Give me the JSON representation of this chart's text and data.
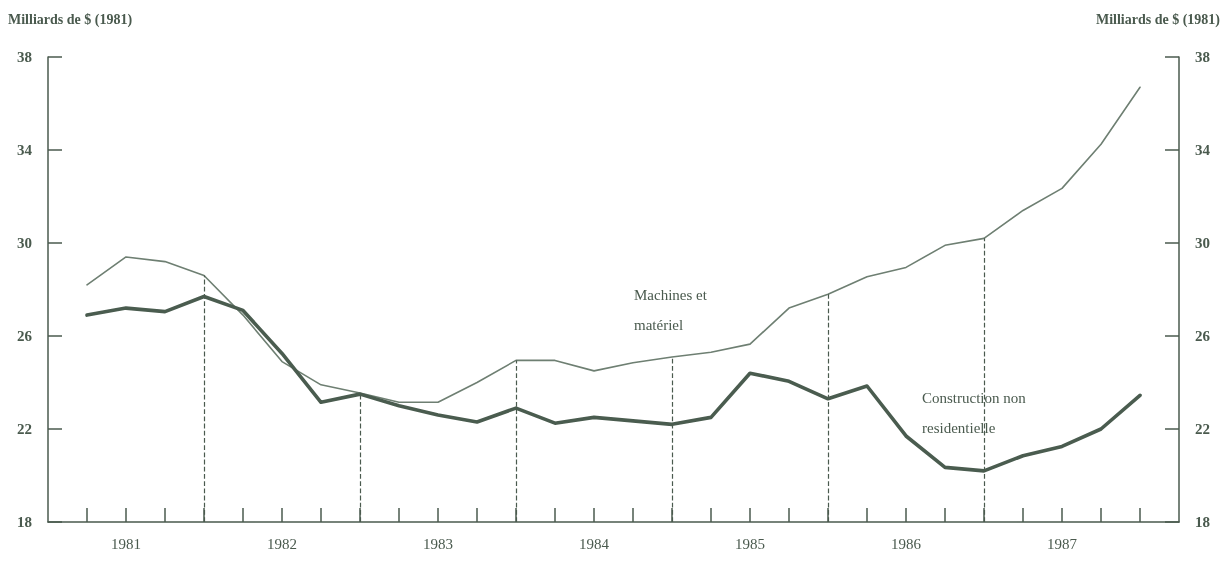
{
  "chart_data": {
    "type": "line",
    "ylabel": "Milliards de $ (1981)",
    "y2label": "Milliards de $ (1981)",
    "x": [
      1981,
      1981.25,
      1981.5,
      1981.75,
      1982,
      1982.25,
      1982.5,
      1982.75,
      1983,
      1983.25,
      1983.5,
      1983.75,
      1984,
      1984.25,
      1984.5,
      1984.75,
      1985,
      1985.25,
      1985.5,
      1985.75,
      1986,
      1986.25,
      1986.5,
      1986.75,
      1987,
      1987.25,
      1987.5,
      1987.75
    ],
    "series": [
      {
        "name": "Machines et matériel",
        "color": "#6e7f72",
        "values": [
          28.2,
          29.4,
          29.2,
          28.6,
          26.9,
          24.9,
          23.9,
          23.55,
          23.15,
          23.15,
          24.0,
          24.95,
          24.95,
          24.5,
          24.85,
          25.1,
          25.3,
          25.65,
          27.2,
          27.8,
          28.55,
          28.95,
          29.9,
          30.2,
          31.4,
          32.35,
          34.25,
          36.7
        ]
      },
      {
        "name": "Construction non residentielle",
        "color": "#4a5c4f",
        "values": [
          26.9,
          27.2,
          27.05,
          27.7,
          27.1,
          25.25,
          23.15,
          23.5,
          23.0,
          22.6,
          22.3,
          22.9,
          22.25,
          22.5,
          22.35,
          22.2,
          22.5,
          24.4,
          24.05,
          23.3,
          23.85,
          21.7,
          20.35,
          20.2,
          20.85,
          21.25,
          22.0,
          23.45
        ]
      }
    ],
    "xlim": [
      1980.75,
      1988
    ],
    "xticks": [
      {
        "value": 1981,
        "label": null
      },
      {
        "value": 1981.25,
        "label": "1981"
      },
      {
        "value": 1981.5,
        "label": null
      },
      {
        "value": 1981.75,
        "label": null
      },
      {
        "value": 1982,
        "label": null
      },
      {
        "value": 1982.25,
        "label": "1982"
      },
      {
        "value": 1982.5,
        "label": null
      },
      {
        "value": 1982.75,
        "label": null
      },
      {
        "value": 1983,
        "label": null
      },
      {
        "value": 1983.25,
        "label": "1983"
      },
      {
        "value": 1983.5,
        "label": null
      },
      {
        "value": 1983.75,
        "label": null
      },
      {
        "value": 1984,
        "label": null
      },
      {
        "value": 1984.25,
        "label": "1984"
      },
      {
        "value": 1984.5,
        "label": null
      },
      {
        "value": 1984.75,
        "label": null
      },
      {
        "value": 1985,
        "label": null
      },
      {
        "value": 1985.25,
        "label": "1985"
      },
      {
        "value": 1985.5,
        "label": null
      },
      {
        "value": 1985.75,
        "label": null
      },
      {
        "value": 1986,
        "label": null
      },
      {
        "value": 1986.25,
        "label": "1986"
      },
      {
        "value": 1986.5,
        "label": null
      },
      {
        "value": 1986.75,
        "label": null
      },
      {
        "value": 1987,
        "label": null
      },
      {
        "value": 1987.25,
        "label": "1987"
      },
      {
        "value": 1987.5,
        "label": null
      },
      {
        "value": 1987.75,
        "label": null
      }
    ],
    "ylim": [
      18,
      38
    ],
    "yticks": [
      18,
      22,
      26,
      30,
      34,
      38
    ],
    "y2lim": [
      18,
      38
    ],
    "y2ticks": [
      18,
      22,
      26,
      30,
      34,
      38
    ],
    "ref_lines": [
      {
        "axis": "x",
        "value": 1981.75,
        "line_style": "dashed"
      },
      {
        "axis": "x",
        "value": 1982.75,
        "line_style": "dashed"
      },
      {
        "axis": "x",
        "value": 1983.75,
        "line_style": "dashed"
      },
      {
        "axis": "x",
        "value": 1984.75,
        "line_style": "dashed"
      },
      {
        "axis": "x",
        "value": 1985.75,
        "line_style": "dashed"
      },
      {
        "axis": "x",
        "value": 1986.75,
        "line_style": "dashed"
      }
    ],
    "grid": false,
    "legend": false,
    "marker": "none",
    "line_style": "solid"
  }
}
